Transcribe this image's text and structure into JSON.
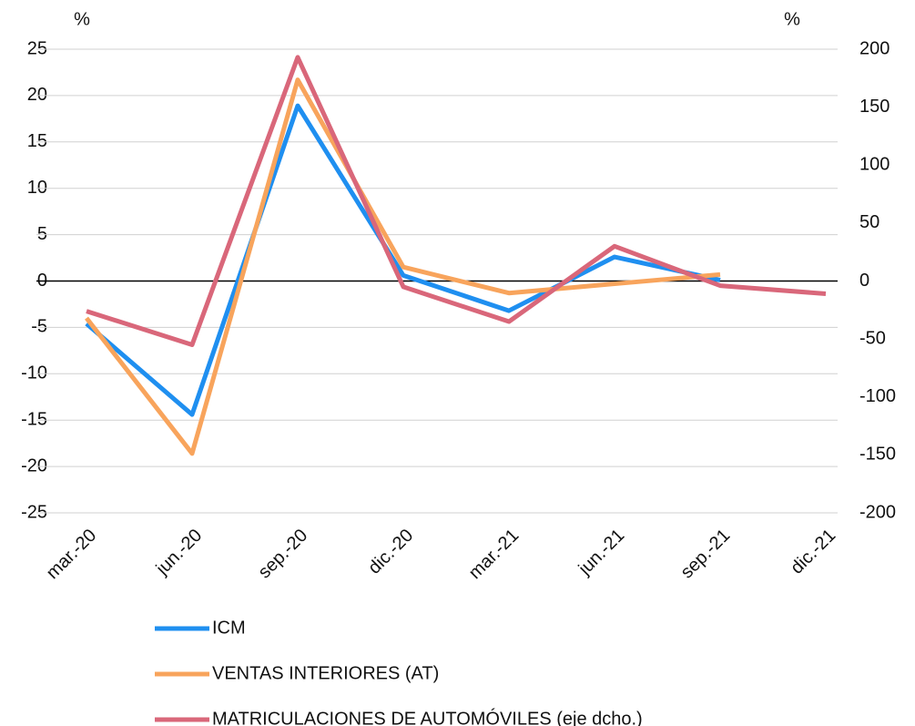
{
  "chart_data": {
    "type": "line",
    "y_unit": "%",
    "y2_unit": "%",
    "categories": [
      "mar.-20",
      "jun.-20",
      "sep.-20",
      "dic.-20",
      "mar.-21",
      "jun.-21",
      "sep.-21",
      "dic.-21"
    ],
    "series": [
      {
        "name": "ICM",
        "color": "#1f8ff0",
        "values": [
          -4.6,
          -14.4,
          18.9,
          0.6,
          -3.2,
          2.6,
          0.1,
          null
        ]
      },
      {
        "name": "VENTAS INTERIORES (AT)",
        "color": "#f8a45c",
        "values": [
          -4.0,
          -18.6,
          21.7,
          1.5,
          -1.3,
          -0.3,
          0.7,
          null
        ]
      },
      {
        "name": "MATRICULACIONES DE AUTOMÓVILES (eje dcho.)",
        "color": "#d9677a",
        "axis": "y2",
        "values": [
          -26,
          -55,
          193,
          -5,
          -35,
          30,
          -4,
          -11
        ]
      }
    ],
    "ylim": [
      -25,
      25
    ],
    "yticks": [
      -25,
      -20,
      -15,
      -10,
      -5,
      0,
      5,
      10,
      15,
      20,
      25
    ],
    "y2lim": [
      -200,
      200
    ],
    "y2ticks": [
      -200,
      -150,
      -100,
      -50,
      0,
      50,
      100,
      150,
      200
    ],
    "grid": true
  }
}
